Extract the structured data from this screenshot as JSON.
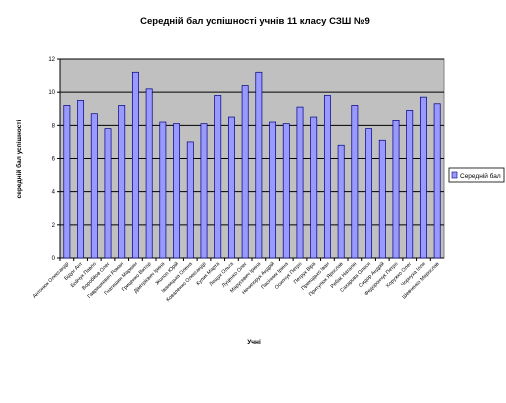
{
  "chart_data": {
    "type": "bar",
    "title": "Середній бал успішності учнів 11 класу СЗШ №9",
    "xlabel": "Учні",
    "ylabel": "середній бал успішності",
    "ylim": [
      0,
      12
    ],
    "yticks": [
      0,
      2,
      4,
      6,
      8,
      10,
      12
    ],
    "grid": true,
    "legend_position": "right",
    "series": [
      {
        "name": "Середній бал",
        "color": "#9999ff",
        "values": [
          9.2,
          9.5,
          8.7,
          7.8,
          9.2,
          11.2,
          10.2,
          8.2,
          8.1,
          7.0,
          8.1,
          9.8,
          8.5,
          10.4,
          11.2,
          8.2,
          8.1,
          9.1,
          8.5,
          9.8,
          6.8,
          9.2,
          7.8,
          7.1,
          8.3,
          8.9,
          9.7,
          9.3
        ]
      }
    ],
    "categories": [
      "Антонюк Олександр",
      "Бідун Ант",
      "Бойчук Павло",
      "Воробйов Олег",
      "Гавришкевич Роман",
      "Гнатишин Маркіян",
      "Гриценко Віктор",
      "Дімітрієвич Ірина",
      "Жолоп Юрій",
      "Іваницька Олена",
      "Коваленко Олександр",
      "Кулик Марта",
      "Лещук Ольга",
      "Луценко Олег",
      "Марусевич Ірина",
      "Нечипорук Андрій",
      "Пасічник Ірина",
      "Осипчук Петро",
      "Петрук Віра",
      "Приходько Іван",
      "Притулюк Ярослав",
      "Рибак Наталія",
      "Сахарова Олеся",
      "Сидор Андрій",
      "Федорончук Петро",
      "Хоружко Олег",
      "Чорнуха Ілля",
      "Шевченко Мирослав"
    ],
    "colors": {
      "plot_background": "#c0c0c0",
      "gridline": "#000000",
      "bar_fill": "#9999ff",
      "bar_stroke": "#000080"
    }
  }
}
